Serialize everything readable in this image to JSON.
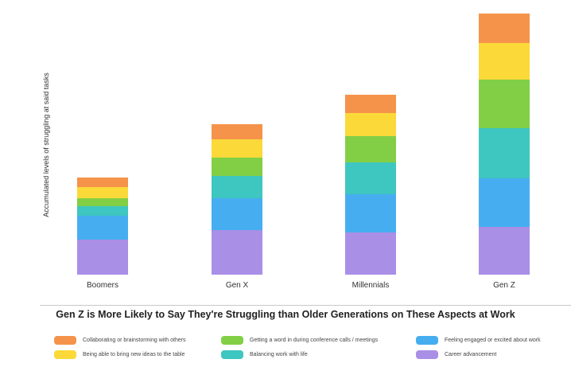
{
  "chart_data": {
    "type": "bar",
    "stacked": true,
    "title": "Gen Z is More Likely to Say They're Struggling than Older Generations on These Aspects at Work",
    "ylabel": "Accumulated levels of struggling at said tasks",
    "xlabel": "",
    "categories": [
      "Boomers",
      "Gen X",
      "Millennials",
      "Gen Z"
    ],
    "grid": false,
    "legend_position": "bottom",
    "series": [
      {
        "name": "Career advancement",
        "color": "#a98fe6",
        "values": [
          44,
          56,
          53,
          60
        ]
      },
      {
        "name": "Feeling engaged or excited about work",
        "color": "#46aef0",
        "values": [
          30,
          40,
          48,
          61
        ]
      },
      {
        "name": "Balancing work with life",
        "color": "#3ec6c0",
        "values": [
          12,
          28,
          40,
          63
        ]
      },
      {
        "name": "Getting a word in during conference calls / meetings",
        "color": "#82cf45",
        "values": [
          10,
          23,
          33,
          61
        ]
      },
      {
        "name": "Being able to bring new ideas to the table",
        "color": "#fbd939",
        "values": [
          14,
          23,
          29,
          46
        ]
      },
      {
        "name": "Collaborating or brainstorming with others",
        "color": "#f5934a",
        "values": [
          12,
          19,
          23,
          37
        ]
      }
    ],
    "legend_order": [
      "Collaborating or brainstorming with others",
      "Getting a word in during conference calls / meetings",
      "Feeling engaged or excited about work",
      "Being able to bring new ideas to the table",
      "Balancing work with life",
      "Career advancement"
    ]
  }
}
